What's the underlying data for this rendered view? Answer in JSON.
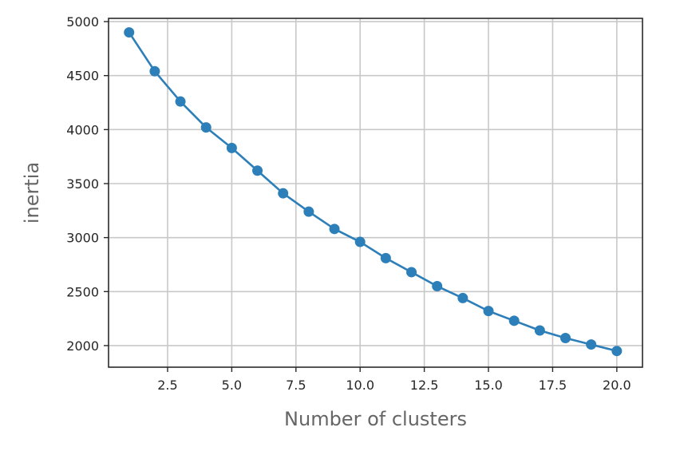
{
  "chart_data": {
    "type": "line",
    "title": "",
    "xlabel": "Number of clusters",
    "ylabel": "inertia",
    "xlim": [
      0.2,
      21.0
    ],
    "ylim": [
      1800,
      5030
    ],
    "xticks": [
      2.5,
      5.0,
      7.5,
      10.0,
      12.5,
      15.0,
      17.5,
      20.0
    ],
    "xtick_labels": [
      "2.5",
      "5.0",
      "7.5",
      "10.0",
      "12.5",
      "15.0",
      "17.5",
      "20.0"
    ],
    "yticks": [
      2000,
      2500,
      3000,
      3500,
      4000,
      4500,
      5000
    ],
    "ytick_labels": [
      "2000",
      "2500",
      "3000",
      "3500",
      "4000",
      "4500",
      "5000"
    ],
    "grid": true,
    "legend": false,
    "series": [
      {
        "color": "#2c7fb8",
        "marker": "circle",
        "x": [
          1,
          2,
          3,
          4,
          5,
          6,
          7,
          8,
          9,
          10,
          11,
          12,
          13,
          14,
          15,
          16,
          17,
          18,
          19,
          20
        ],
        "y": [
          4900,
          4540,
          4260,
          4020,
          3830,
          3620,
          3410,
          3240,
          3080,
          2960,
          2810,
          2680,
          2550,
          2440,
          2320,
          2230,
          2140,
          2070,
          2010,
          1950
        ]
      }
    ]
  }
}
